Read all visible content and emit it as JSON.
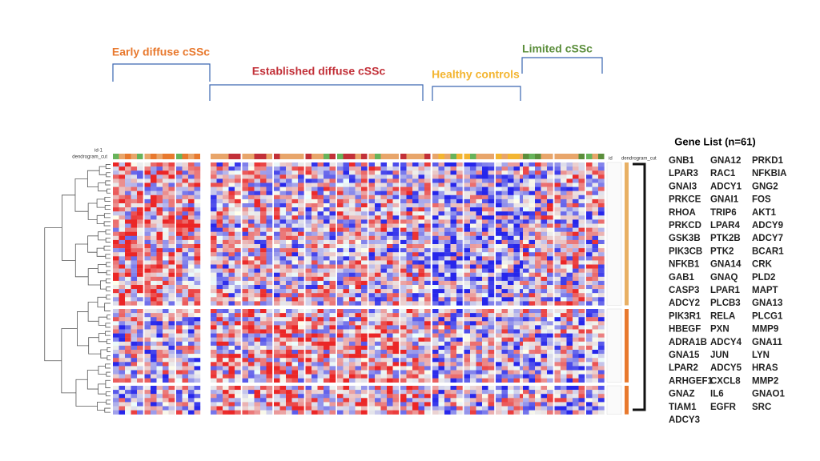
{
  "groups": [
    {
      "label": "Early diffuse cSSc",
      "color": "#e8792e"
    },
    {
      "label": "Established diffuse cSSc",
      "color": "#c23038"
    },
    {
      "label": "Healthy controls",
      "color": "#f3b531"
    },
    {
      "label": "Limited cSSc",
      "color": "#5b8e3b"
    }
  ],
  "row_labels": {
    "id": "id",
    "id1": "id-1",
    "cut": "dendrogram_cut"
  },
  "gene_list": {
    "title": "Gene List (n=61)",
    "columns": [
      [
        "GNB1",
        "LPAR3",
        "GNAI3",
        "PRKCE",
        "RHOA",
        "PRKCD",
        "GSK3B",
        "PIK3CB",
        "NFKB1",
        "GAB1",
        "CASP3",
        "ADCY2",
        "PIK3R1",
        "HBEGF",
        "ADRA1B",
        "GNA15",
        "LPAR2",
        "ARHGEF1",
        "GNAZ",
        "TIAM1",
        "ADCY3"
      ],
      [
        "GNA12",
        "RAC1",
        "ADCY1",
        "GNAI1",
        "TRIP6",
        "LPAR4",
        "PTK2B",
        "PTK2",
        "GNA14",
        "GNAQ",
        "LPAR1",
        "PLCB3",
        "RELA",
        "PXN",
        "ADCY4",
        "JUN",
        "ADCY5",
        "CXCL8",
        "IL6",
        "EGFR"
      ],
      [
        "PRKD1",
        "NFKBIA",
        "GNG2",
        "FOS",
        "AKT1",
        "ADCY9",
        "ADCY7",
        "BCAR1",
        "CRK",
        "PLD2",
        "MAPT",
        "GNA13",
        "PLCG1",
        "MMP9",
        "GNA11",
        "LYN",
        "HRAS",
        "MMP2",
        "GNAO1",
        "SRC"
      ]
    ]
  }
}
